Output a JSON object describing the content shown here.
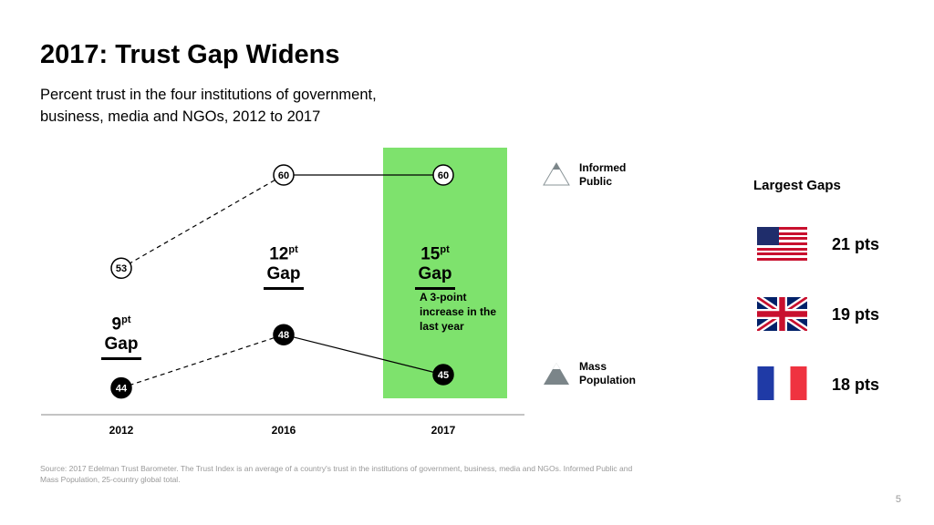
{
  "title": "2017: Trust Gap Widens",
  "subtitle": "Percent trust in the four institutions of government, business, media and NGOs, 2012 to 2017",
  "chart_data": {
    "type": "line",
    "categories": [
      "2012",
      "2016",
      "2017"
    ],
    "series": [
      {
        "name": "Informed Public",
        "values": [
          53,
          60,
          60
        ]
      },
      {
        "name": "Mass Population",
        "values": [
          44,
          48,
          45
        ]
      }
    ],
    "highlight_category": "2017",
    "highlight_color": "#7EE26D",
    "gaps": [
      {
        "num": "9",
        "unit": "pt",
        "word": "Gap"
      },
      {
        "num": "12",
        "unit": "pt",
        "word": "Gap"
      },
      {
        "num": "15",
        "unit": "pt",
        "word": "Gap"
      }
    ],
    "annotation": "A 3-point increase in the last year",
    "legend": [
      "Informed Public",
      "Mass Population"
    ]
  },
  "largest_gaps": {
    "heading": "Largest Gaps",
    "items": [
      {
        "country": "United States",
        "value": "21 pts"
      },
      {
        "country": "United Kingdom",
        "value": "19 pts"
      },
      {
        "country": "France",
        "value": "18 pts"
      }
    ]
  },
  "source": "Source: 2017 Edelman Trust Barometer. The Trust Index is an average of a country's trust in the institutions of government, business, media and NGOs. Informed Public and Mass Population, 25-country global total.",
  "page_number": "5"
}
